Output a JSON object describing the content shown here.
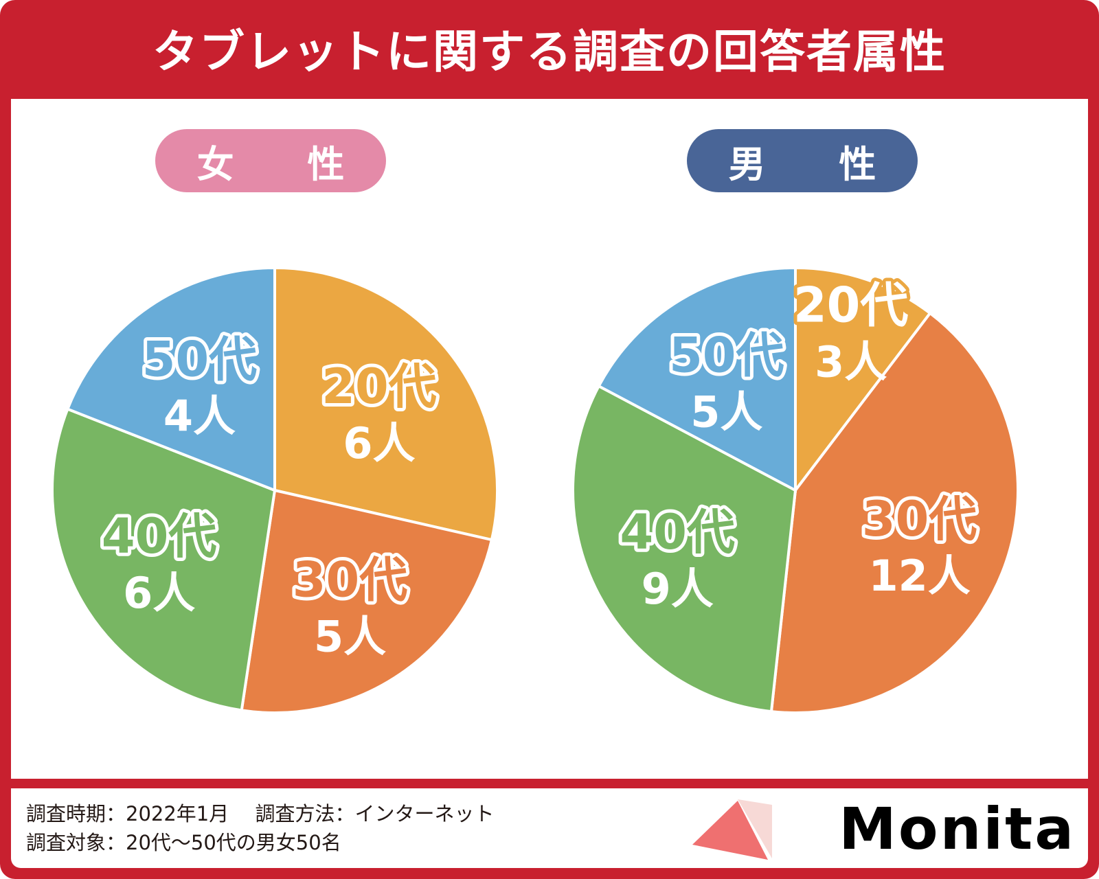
{
  "title": "タブレットに関する調査の回答者属性",
  "colors": {
    "brand_red": "#c8202f",
    "female_pill": "#e48aa8",
    "male_pill": "#496597",
    "age20": "#eba742",
    "age30": "#e78045",
    "age40": "#78b663",
    "age50": "#68acd8"
  },
  "chart_data": [
    {
      "type": "pie",
      "title": "女 性",
      "categories": [
        "20代",
        "30代",
        "40代",
        "50代"
      ],
      "values": [
        6,
        5,
        6,
        4
      ],
      "value_labels": [
        "6人",
        "5人",
        "6人",
        "4人"
      ],
      "start_angle_deg": 0,
      "direction": "clockwise"
    },
    {
      "type": "pie",
      "title": "男 性",
      "categories": [
        "20代",
        "30代",
        "40代",
        "50代"
      ],
      "values": [
        3,
        12,
        9,
        5
      ],
      "value_labels": [
        "3人",
        "12人",
        "9人",
        "5人"
      ],
      "start_angle_deg": 0,
      "direction": "clockwise"
    }
  ],
  "footer": {
    "line1": "調査時期：2022年1月　 調査方法：インターネット",
    "line2": "調査対象：20代～50代の男女50名"
  },
  "logo": {
    "text": "Monita",
    "icon": "triangle-logo-icon"
  }
}
